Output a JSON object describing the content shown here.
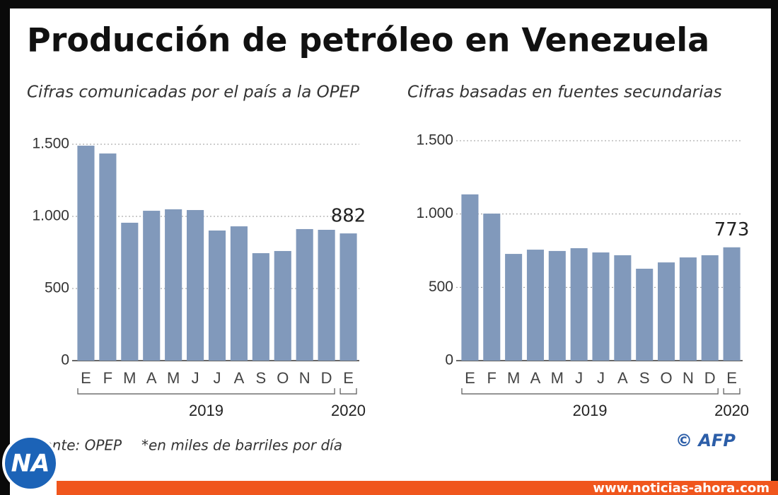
{
  "title": "Producción de petróleo en Venezuela",
  "chart_data": [
    {
      "type": "bar",
      "title": "Cifras comunicadas por el país a la OPEP",
      "categories": [
        "E",
        "F",
        "M",
        "A",
        "M",
        "J",
        "J",
        "A",
        "S",
        "O",
        "N",
        "D",
        "E"
      ],
      "values": [
        1490,
        1436,
        956,
        1039,
        1049,
        1044,
        902,
        931,
        745,
        760,
        912,
        907,
        882
      ],
      "color": "#8199bb",
      "ylim": [
        0,
        1500
      ],
      "yticks": [
        0,
        500,
        {
          "value": 1000,
          "label": "1.000"
        },
        {
          "value": 1500,
          "label": "1.500"
        }
      ],
      "grid": true,
      "x_groups": [
        "2019",
        "2020"
      ],
      "annotation": "882"
    },
    {
      "type": "bar",
      "title": "Cifras basadas en fuentes secundarias",
      "categories": [
        "E",
        "F",
        "M",
        "A",
        "M",
        "J",
        "J",
        "A",
        "S",
        "O",
        "N",
        "D",
        "E"
      ],
      "values": [
        1134,
        1003,
        728,
        757,
        748,
        767,
        738,
        719,
        627,
        670,
        704,
        719,
        773
      ],
      "color": "#8199bb",
      "ylim": [
        0,
        1500
      ],
      "yticks": [
        0,
        500,
        {
          "value": 1000,
          "label": "1.000"
        },
        {
          "value": 1500,
          "label": "1.500"
        }
      ],
      "grid": true,
      "x_groups": [
        "2019",
        "2020"
      ],
      "annotation": "773"
    }
  ],
  "footer": {
    "source": "Fuente: OPEP",
    "note": "*en miles de barriles por día",
    "credit": "© AFP",
    "logo": "NA",
    "website": "www.noticias-ahora.com"
  }
}
